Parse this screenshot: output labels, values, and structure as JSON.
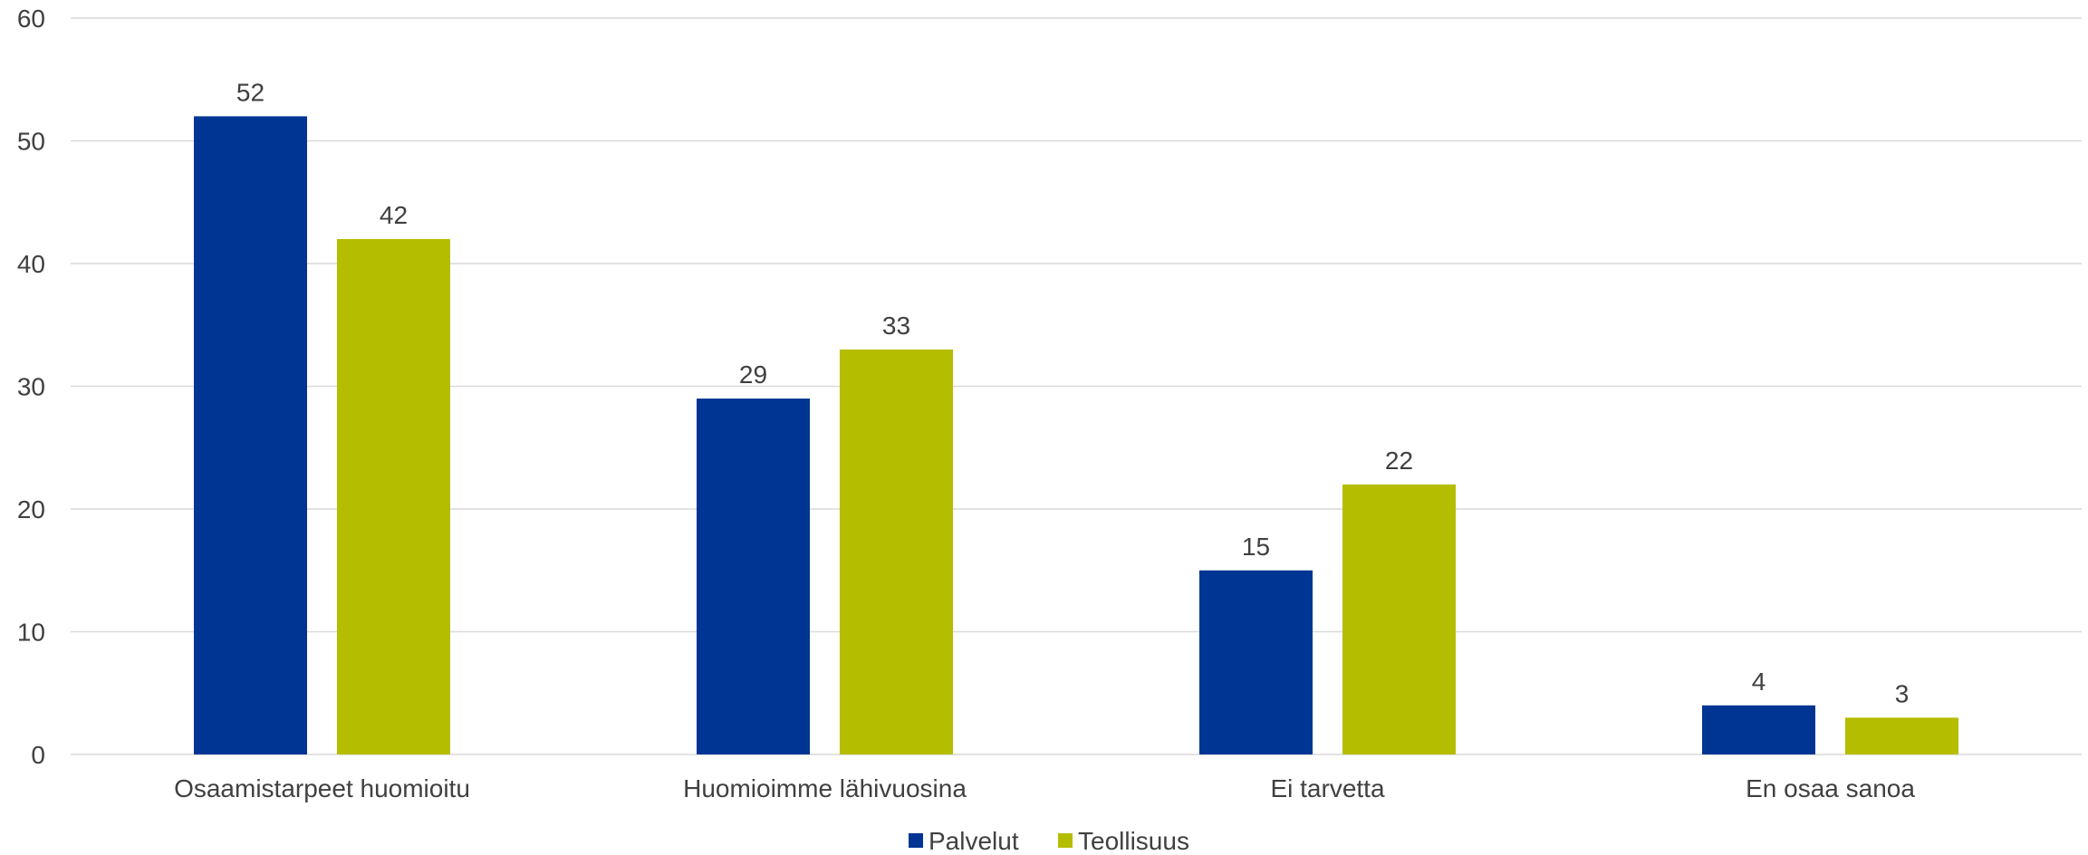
{
  "chart_data": {
    "type": "bar",
    "categories": [
      "Osaamistarpeet huomioitu",
      "Huomioimme lähivuosina",
      "Ei tarvetta",
      "En osaa sanoa"
    ],
    "series": [
      {
        "name": "Palvelut",
        "values": [
          52,
          29,
          15,
          4
        ],
        "color": "#003594"
      },
      {
        "name": "Teollisuus",
        "values": [
          42,
          33,
          22,
          3
        ],
        "color": "#b5bd00"
      }
    ],
    "yticks": [
      0,
      10,
      20,
      30,
      40,
      50,
      60
    ],
    "ylim": [
      0,
      60
    ],
    "grid": true,
    "legend_position": "bottom-center",
    "gridline_color": "#d9d9d9"
  }
}
